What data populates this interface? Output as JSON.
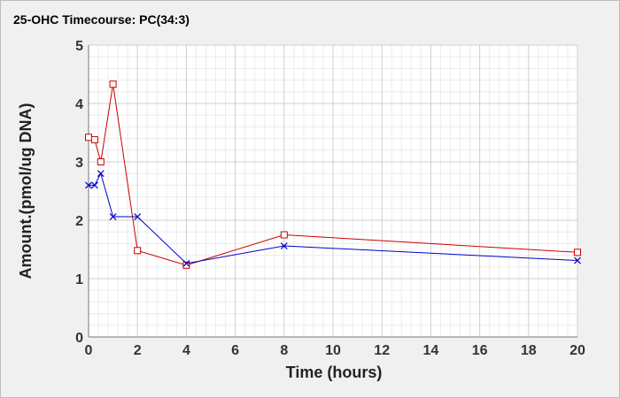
{
  "chart_data": {
    "type": "line",
    "title": "25-OHC Timecourse: PC(34:3)",
    "xlabel": "Time (hours)",
    "ylabel": "Amount.(pmol/ug DNA)",
    "xlim": [
      0,
      20
    ],
    "ylim": [
      0,
      5
    ],
    "xticks": [
      0,
      2,
      4,
      6,
      8,
      10,
      12,
      14,
      16,
      18,
      20
    ],
    "yticks": [
      0,
      1,
      2,
      3,
      4,
      5
    ],
    "grid": true,
    "legend": "none",
    "background_color": "#f0f0f0",
    "plot_background_color": "#ffffff",
    "series": [
      {
        "marker": "square",
        "color": "#cc0000",
        "x": [
          0,
          0.25,
          0.5,
          1,
          2,
          4,
          8,
          20
        ],
        "y": [
          3.42,
          3.38,
          3.0,
          4.33,
          1.48,
          1.23,
          1.75,
          1.45
        ]
      },
      {
        "marker": "x",
        "color": "#0000cc",
        "x": [
          0,
          0.25,
          0.5,
          1,
          2,
          4,
          8,
          20
        ],
        "y": [
          2.6,
          2.6,
          2.8,
          2.06,
          2.06,
          1.26,
          1.56,
          1.31
        ]
      }
    ]
  }
}
